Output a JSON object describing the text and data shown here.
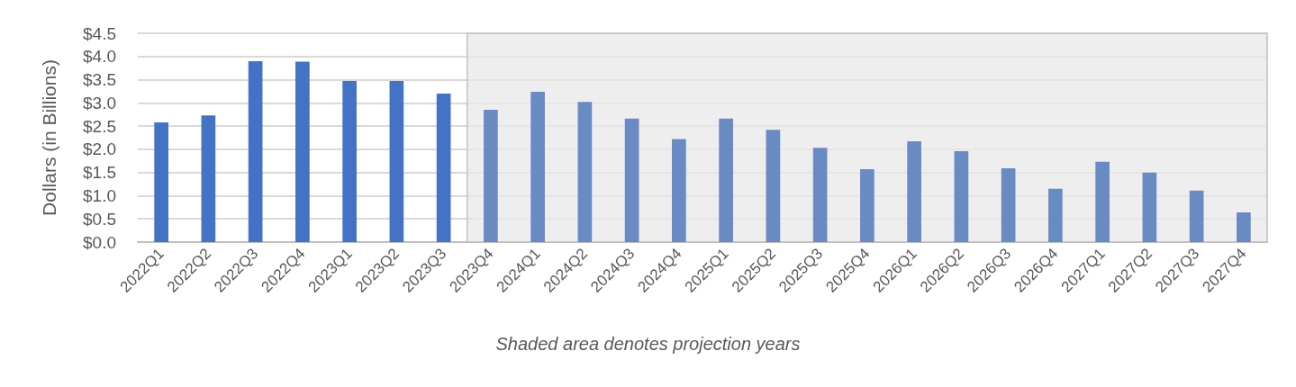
{
  "chart_data": {
    "type": "bar",
    "ylabel": "Dollars (in Billions)",
    "categories": [
      "2022Q1",
      "2022Q2",
      "2022Q3",
      "2022Q4",
      "2023Q1",
      "2023Q2",
      "2023Q3",
      "2023Q4",
      "2024Q1",
      "2024Q2",
      "2024Q3",
      "2024Q4",
      "2025Q1",
      "2025Q2",
      "2025Q3",
      "2025Q4",
      "2026Q1",
      "2026Q2",
      "2026Q3",
      "2026Q4",
      "2027Q1",
      "2027Q2",
      "2027Q3",
      "2027Q4"
    ],
    "values": [
      2.58,
      2.73,
      3.9,
      3.89,
      3.47,
      3.47,
      3.2,
      2.85,
      3.24,
      3.02,
      2.66,
      2.22,
      2.66,
      2.42,
      2.03,
      1.57,
      2.17,
      1.96,
      1.59,
      1.15,
      1.73,
      1.5,
      1.11,
      0.64
    ],
    "colors": [
      "#4472c4",
      "#4472c4",
      "#4472c4",
      "#4472c4",
      "#4472c4",
      "#4472c4",
      "#4472c4",
      "#6a8ac4",
      "#6a8ac4",
      "#6a8ac4",
      "#6a8ac4",
      "#6a8ac4",
      "#6a8ac4",
      "#6a8ac4",
      "#6a8ac4",
      "#6a8ac4",
      "#6a8ac4",
      "#6a8ac4",
      "#6a8ac4",
      "#6a8ac4",
      "#6a8ac4",
      "#6a8ac4",
      "#6a8ac4",
      "#6a8ac4"
    ],
    "ylim": [
      0,
      4.5
    ],
    "yticks": [
      {
        "value": 0,
        "label": "$0.0"
      },
      {
        "value": 0.5,
        "label": "$0.5"
      },
      {
        "value": 1,
        "label": "$1.0"
      },
      {
        "value": 1.5,
        "label": "$1.5"
      },
      {
        "value": 2,
        "label": "$2.0"
      },
      {
        "value": 2.5,
        "label": "$2.5"
      },
      {
        "value": 3,
        "label": "$3.0"
      },
      {
        "value": 3.5,
        "label": "$3.5"
      },
      {
        "value": 4,
        "label": "$4.0"
      },
      {
        "value": 4.5,
        "label": "$4.5"
      }
    ],
    "bands": [
      {
        "axis": "x",
        "from": "2023Q4",
        "to": "2027Q4",
        "color": "#e8e8e8"
      }
    ],
    "annotations": [
      "Shaded area denotes projection years"
    ],
    "grid": "y"
  }
}
